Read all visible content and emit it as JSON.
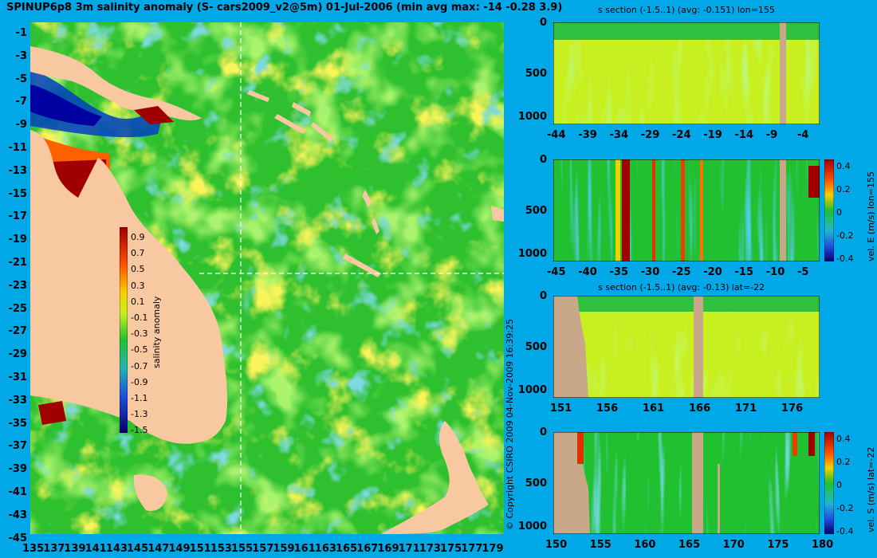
{
  "title": "SPINUP6p8 3m salinity anomaly (S- cars2009_v2@5m) 01-Jul-2006 (min avg max: -14 -0.28 3.9)",
  "map": {
    "lat_ticks": [
      "-1",
      "-3",
      "-5",
      "-7",
      "-9",
      "-11",
      "-13",
      "-15",
      "-17",
      "-19",
      "-21",
      "-23",
      "-25",
      "-27",
      "-29",
      "-31",
      "-33",
      "-35",
      "-37",
      "-39",
      "-41",
      "-43",
      "-45"
    ],
    "lon_ticks": [
      "135",
      "137",
      "139",
      "141",
      "143",
      "145",
      "147",
      "149",
      "151",
      "153",
      "155",
      "157",
      "159",
      "161",
      "163",
      "165",
      "167",
      "169",
      "171",
      "173",
      "175",
      "177",
      "179"
    ],
    "section_lines": {
      "lon": 155,
      "lat": -22
    },
    "colorbar": {
      "label": "salinity anomaly",
      "ticks": [
        "0.9",
        "0.7",
        "0.5",
        "0.3",
        "0.1",
        "-0.1",
        "-0.3",
        "-0.5",
        "-0.7",
        "-0.9",
        "-1.1",
        "-1.3",
        "-1.5"
      ],
      "range": [
        -1.5,
        1.0
      ]
    },
    "colors": {
      "land": "#f8c8a0",
      "ocean_base": "#2ec02e",
      "fresh": "#0000a0",
      "salty": "#a00000"
    }
  },
  "copyright": "© Copyright CSIRO 2009   04-Nov-2009 16:39:25",
  "panels": {
    "p1": {
      "title": "s section (-1.5..1) (avg: -0.151) lon=155",
      "xticks": [
        "-44",
        "-39",
        "-34",
        "-29",
        "-24",
        "-19",
        "-14",
        "-9",
        "-4"
      ],
      "yticks": [
        "0",
        "500",
        "1000"
      ]
    },
    "p2": {
      "xticks": [
        "-45",
        "-40",
        "-35",
        "-30",
        "-25",
        "-20",
        "-15",
        "-10",
        "-5"
      ],
      "yticks": [
        "0",
        "500",
        "1000"
      ],
      "colorbar_label": "vel. E (m/s) lon=155",
      "colorbar_ticks": [
        "0.4",
        "0.2",
        "0",
        "-0.2",
        "-0.4"
      ]
    },
    "p3": {
      "title": "s section (-1.5..1) (avg: -0.13) lat=-22",
      "xticks": [
        "151",
        "156",
        "161",
        "166",
        "171",
        "176"
      ],
      "yticks": [
        "0",
        "500",
        "1000"
      ]
    },
    "p4": {
      "xticks": [
        "150",
        "155",
        "160",
        "165",
        "170",
        "175",
        "180"
      ],
      "yticks": [
        "0",
        "500",
        "1000"
      ],
      "colorbar_label": "vel. S (m/s) lat=-22",
      "colorbar_ticks": [
        "0.4",
        "0.2",
        "0",
        "-0.2",
        "-0.4"
      ]
    }
  }
}
